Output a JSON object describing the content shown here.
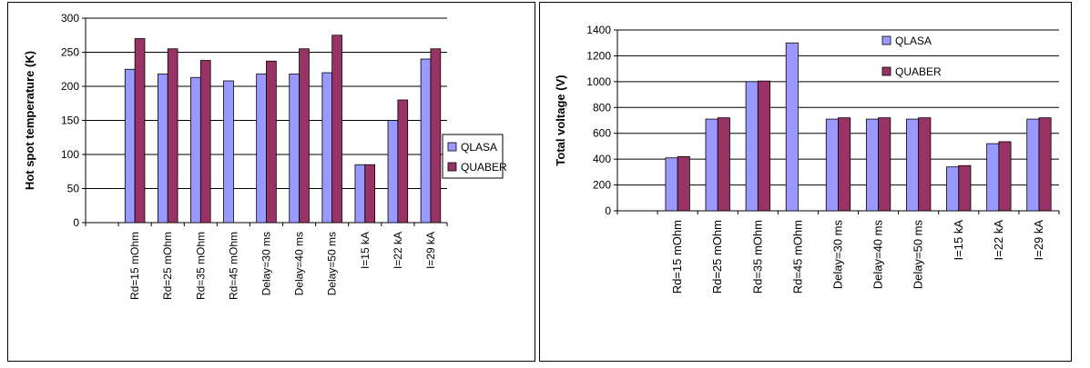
{
  "chart_data": [
    {
      "type": "bar",
      "categories": [
        "Rd=15 mOhm",
        "Rd=25 mOhm",
        "Rd=35 mOhm",
        "Rd=45 mOhm",
        "Delay=30 ms",
        "Delay=40 ms",
        "Delay=50 ms",
        "I=15 kA",
        "I=22 kA",
        "I=29 kA"
      ],
      "series": [
        {
          "name": "QLASA",
          "values": [
            225,
            218,
            213,
            208,
            218,
            218,
            220,
            85,
            150,
            240
          ]
        },
        {
          "name": "QUABER",
          "values": [
            270,
            255,
            238,
            0,
            237,
            255,
            275,
            85,
            180,
            255
          ]
        }
      ],
      "title": "",
      "xlabel": "",
      "ylabel": "Hot spot temperature (K)",
      "ylim": [
        0,
        300
      ],
      "yticks": [
        "0",
        "50",
        "100",
        "150",
        "200",
        "250",
        "300"
      ],
      "grid": true,
      "legend": "right",
      "colors": {
        "QLASA": "#9999ff",
        "QUABER": "#993366"
      }
    },
    {
      "type": "bar",
      "categories": [
        "Rd=15 mOhm",
        "Rd=25 mOhm",
        "Rd=35 mOhm",
        "Rd=45 mOhm",
        "Delay=30 ms",
        "Delay=40 ms",
        "Delay=50 ms",
        "I=15 kA",
        "I=22 kA",
        "I=29 kA"
      ],
      "series": [
        {
          "name": "QLASA",
          "values": [
            410,
            710,
            1000,
            1300,
            710,
            710,
            710,
            340,
            520,
            710
          ]
        },
        {
          "name": "QUABER",
          "values": [
            420,
            720,
            1005,
            0,
            720,
            720,
            720,
            350,
            535,
            720
          ]
        }
      ],
      "title": "",
      "xlabel": "",
      "ylabel": "Total voltage (V)",
      "ylim": [
        0,
        1400
      ],
      "yticks": [
        "0",
        "200",
        "400",
        "600",
        "800",
        "1000",
        "1200",
        "1400"
      ],
      "grid": true,
      "legend": "top-right",
      "colors": {
        "QLASA": "#9999ff",
        "QUABER": "#993366"
      }
    }
  ]
}
